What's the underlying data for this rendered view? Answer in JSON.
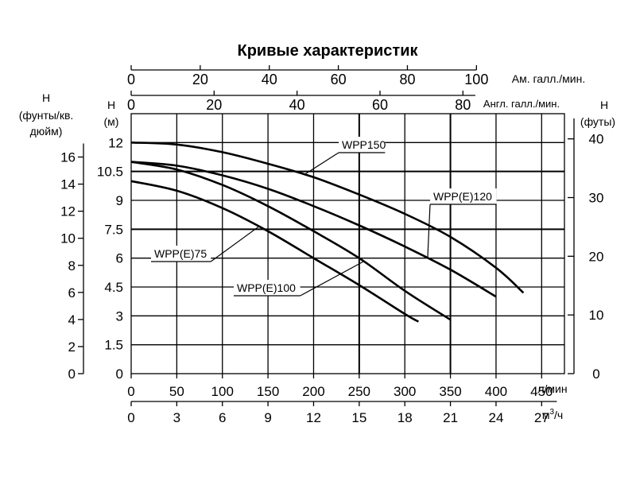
{
  "chart_data": {
    "type": "line",
    "title": "Кривые характеристик",
    "x_axes": {
      "lpm": {
        "label": "л/мин",
        "ticks": [
          0,
          50,
          100,
          150,
          200,
          250,
          300,
          350,
          400,
          450
        ],
        "range": [
          0,
          475
        ]
      },
      "m3h": {
        "label_base": "м",
        "label_sup": "3",
        "label_tail": "/ч",
        "ticks": [
          0,
          3,
          6,
          9,
          12,
          15,
          18,
          21,
          24,
          27
        ]
      },
      "us_gpm": {
        "label": "Ам. галл./мин.",
        "ticks": [
          0,
          20,
          40,
          60,
          80,
          100
        ]
      },
      "imp_gpm": {
        "label": "Англ. галл./мин.",
        "ticks": [
          0,
          20,
          40,
          60,
          80
        ]
      }
    },
    "y_axes": {
      "m": {
        "label_h": "H",
        "label_unit": "(м)",
        "ticks": [
          0,
          1.5,
          3,
          4.5,
          6,
          7.5,
          9,
          10.5,
          12
        ],
        "range": [
          0,
          13.5
        ]
      },
      "psi": {
        "label_h": "H",
        "label_unit_1": "(фунты/кв.",
        "label_unit_2": "дюйм)",
        "ticks": [
          0,
          2,
          4,
          6,
          8,
          10,
          12,
          14,
          16
        ]
      },
      "ft": {
        "label_h": "H",
        "label_unit": "(футы)",
        "ticks": [
          0,
          10,
          20,
          30,
          40
        ]
      }
    },
    "series": [
      {
        "name": "WPP(E)75",
        "x": [
          0,
          50,
          100,
          150,
          200,
          250,
          300,
          315
        ],
        "y": [
          10.0,
          9.5,
          8.6,
          7.4,
          6.0,
          4.6,
          3.1,
          2.7
        ]
      },
      {
        "name": "WPP(E)100",
        "x": [
          0,
          50,
          100,
          150,
          200,
          250,
          300,
          350
        ],
        "y": [
          11.0,
          10.6,
          9.8,
          8.7,
          7.4,
          6.0,
          4.3,
          2.8
        ]
      },
      {
        "name": "WPP(E)120",
        "x": [
          0,
          50,
          100,
          150,
          200,
          250,
          300,
          350,
          400
        ],
        "y": [
          11.0,
          10.8,
          10.3,
          9.6,
          8.7,
          7.7,
          6.6,
          5.4,
          4.0
        ]
      },
      {
        "name": "WPP150",
        "x": [
          0,
          50,
          100,
          150,
          200,
          250,
          300,
          350,
          400,
          430
        ],
        "y": [
          12.0,
          11.9,
          11.5,
          10.9,
          10.2,
          9.3,
          8.3,
          7.1,
          5.5,
          4.2
        ]
      }
    ],
    "grid": true
  }
}
